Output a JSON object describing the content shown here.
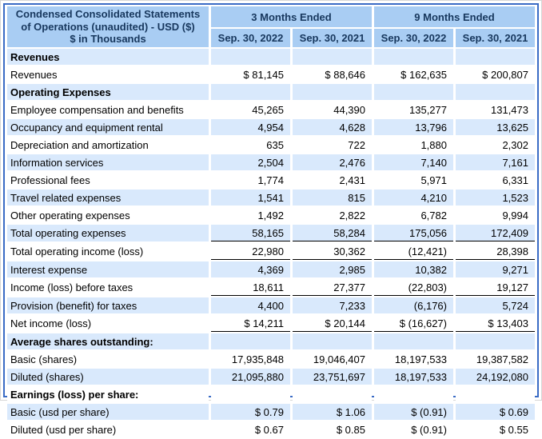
{
  "table": {
    "title_lines": [
      "Condensed Consolidated Statements",
      "of Operations (unaudited) - USD ($)",
      "$ in Thousands"
    ],
    "column_groups": [
      {
        "label": "3 Months Ended",
        "span": 2
      },
      {
        "label": "9 Months Ended",
        "span": 2
      }
    ],
    "column_headers": [
      "Sep. 30, 2022",
      "Sep. 30, 2021",
      "Sep. 30, 2022",
      "Sep. 30, 2021"
    ],
    "rows": [
      {
        "label": "Revenues",
        "type": "section",
        "values": [
          "",
          "",
          "",
          ""
        ],
        "underline": false
      },
      {
        "label": "Revenues",
        "type": "data",
        "values": [
          "$ 81,145",
          "$ 88,646",
          "$ 162,635",
          "$ 200,807"
        ],
        "underline": false
      },
      {
        "label": "Operating Expenses",
        "type": "section",
        "values": [
          "",
          "",
          "",
          ""
        ],
        "underline": false
      },
      {
        "label": "Employee compensation and benefits",
        "type": "data",
        "values": [
          "45,265",
          "44,390",
          "135,277",
          "131,473"
        ],
        "underline": false
      },
      {
        "label": "Occupancy and equipment rental",
        "type": "data",
        "values": [
          "4,954",
          "4,628",
          "13,796",
          "13,625"
        ],
        "underline": false
      },
      {
        "label": "Depreciation and amortization",
        "type": "data",
        "values": [
          "635",
          "722",
          "1,880",
          "2,302"
        ],
        "underline": false
      },
      {
        "label": "Information services",
        "type": "data",
        "values": [
          "2,504",
          "2,476",
          "7,140",
          "7,161"
        ],
        "underline": false
      },
      {
        "label": "Professional fees",
        "type": "data",
        "values": [
          "1,774",
          "2,431",
          "5,971",
          "6,331"
        ],
        "underline": false
      },
      {
        "label": "Travel related expenses",
        "type": "data",
        "values": [
          "1,541",
          "815",
          "4,210",
          "1,523"
        ],
        "underline": false
      },
      {
        "label": "Other operating expenses",
        "type": "data",
        "values": [
          "1,492",
          "2,822",
          "6,782",
          "9,994"
        ],
        "underline": false
      },
      {
        "label": "Total operating expenses",
        "type": "data",
        "values": [
          "58,165",
          "58,284",
          "175,056",
          "172,409"
        ],
        "underline": true
      },
      {
        "label": "Total operating income (loss)",
        "type": "data",
        "values": [
          "22,980",
          "30,362",
          "(12,421)",
          "28,398"
        ],
        "underline": true
      },
      {
        "label": "Interest expense",
        "type": "data",
        "values": [
          "4,369",
          "2,985",
          "10,382",
          "9,271"
        ],
        "underline": false
      },
      {
        "label": "Income (loss) before taxes",
        "type": "data",
        "values": [
          "18,611",
          "27,377",
          "(22,803)",
          "19,127"
        ],
        "underline": true
      },
      {
        "label": "Provision (benefit) for taxes",
        "type": "data",
        "values": [
          "4,400",
          "7,233",
          "(6,176)",
          "5,724"
        ],
        "underline": false
      },
      {
        "label": "Net income (loss)",
        "type": "data",
        "values": [
          "$ 14,211",
          "$ 20,144",
          "$ (16,627)",
          "$ 13,403"
        ],
        "underline": true
      },
      {
        "label": "Average shares outstanding:",
        "type": "section",
        "values": [
          "",
          "",
          "",
          ""
        ],
        "underline": false
      },
      {
        "label": "Basic (shares)",
        "type": "data",
        "values": [
          "17,935,848",
          "19,046,407",
          "18,197,533",
          "19,387,582"
        ],
        "underline": false
      },
      {
        "label": "Diluted (shares)",
        "type": "data",
        "values": [
          "21,095,880",
          "23,751,697",
          "18,197,533",
          "24,192,080"
        ],
        "underline": false
      },
      {
        "label": "Earnings (loss) per share:",
        "type": "section",
        "values": [
          "",
          "",
          "",
          ""
        ],
        "underline": false
      },
      {
        "label": "Basic (usd per share)",
        "type": "data",
        "values": [
          "$ 0.79",
          "$ 1.06",
          "$ (0.91)",
          "$ 0.69"
        ],
        "underline": false
      },
      {
        "label": "Diluted (usd per share)",
        "type": "data",
        "values": [
          "$ 0.67",
          "$ 0.85",
          "$ (0.91)",
          "$ 0.55"
        ],
        "underline": false
      }
    ]
  },
  "colors": {
    "outer_border": "#3a6bc5",
    "header_bg": "#a9cdf3",
    "header_text": "#17375d",
    "row_alt_bg": "#d9e9fc",
    "body_text": "#000000",
    "total_rule": "#000000"
  }
}
